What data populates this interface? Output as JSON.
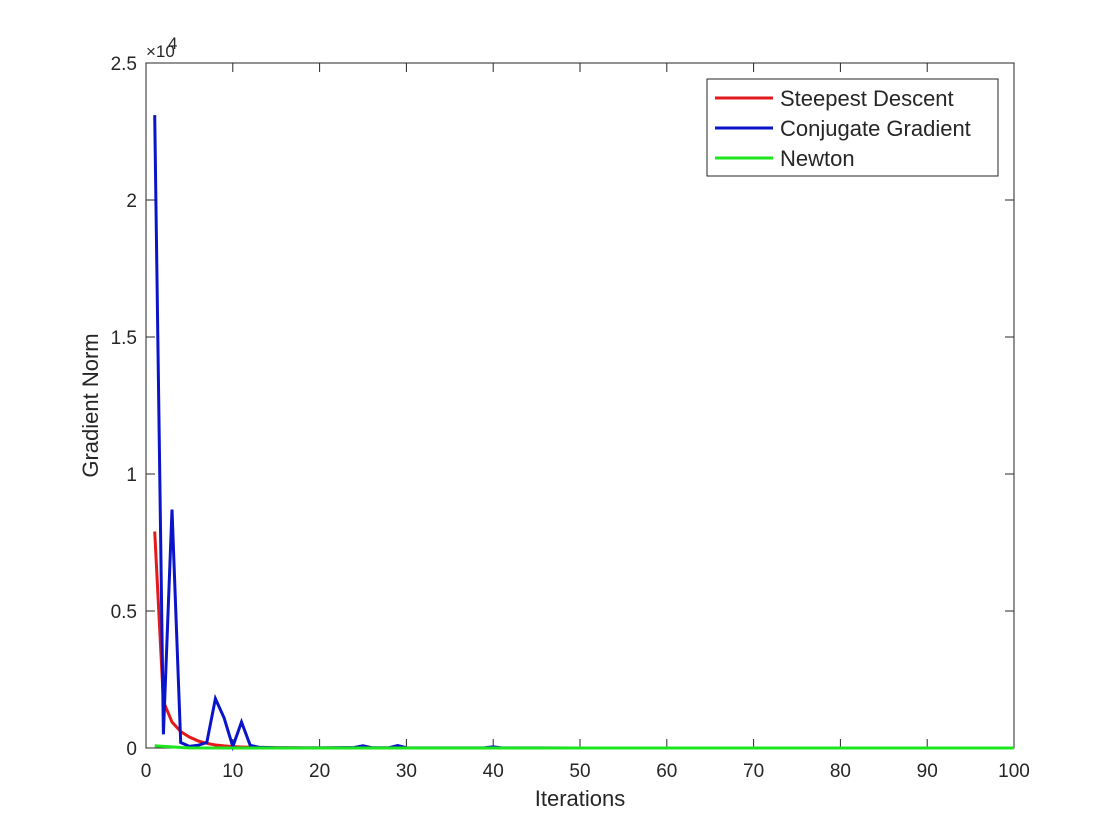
{
  "chart_data": {
    "type": "line",
    "title": "",
    "xlabel": "Iterations",
    "ylabel": "Gradient Norm",
    "xlim": [
      0,
      100
    ],
    "ylim": [
      0,
      25000
    ],
    "y_exponent_label": "×10",
    "y_exponent_power": "4",
    "x_ticks": [
      0,
      10,
      20,
      30,
      40,
      50,
      60,
      70,
      80,
      90,
      100
    ],
    "x_tick_labels": [
      "0",
      "10",
      "20",
      "30",
      "40",
      "50",
      "60",
      "70",
      "80",
      "90",
      "100"
    ],
    "y_ticks": [
      0,
      5000,
      10000,
      15000,
      20000,
      25000
    ],
    "y_tick_labels": [
      "0",
      "0.5",
      "1",
      "1.5",
      "2",
      "2.5"
    ],
    "grid": false,
    "legend_position": "top-right",
    "series": [
      {
        "name": "Steepest Descent",
        "color": "#e31a1c",
        "x": [
          1,
          2,
          3,
          4,
          5,
          6,
          7,
          8,
          9,
          10,
          11,
          12,
          13,
          14,
          15,
          16,
          17,
          18,
          19,
          20,
          25,
          30,
          40,
          50,
          60,
          70,
          80,
          90,
          100
        ],
        "y": [
          7900,
          1700,
          950,
          600,
          400,
          260,
          170,
          110,
          75,
          50,
          35,
          25,
          18,
          13,
          10,
          8,
          6,
          5,
          4,
          3,
          2,
          1,
          1,
          0,
          0,
          0,
          0,
          0,
          0
        ]
      },
      {
        "name": "Conjugate Gradient",
        "color": "#0a14c8",
        "x": [
          1,
          2,
          3,
          4,
          5,
          6,
          7,
          8,
          9,
          10,
          11,
          12,
          13,
          14,
          15,
          20,
          24,
          25,
          26,
          28,
          29,
          30,
          35,
          39,
          40,
          41,
          45,
          50,
          60,
          70,
          80,
          90,
          100
        ],
        "y": [
          23100,
          500,
          8700,
          200,
          60,
          100,
          200,
          1800,
          1100,
          50,
          950,
          100,
          30,
          20,
          10,
          5,
          20,
          80,
          10,
          10,
          90,
          10,
          5,
          10,
          40,
          5,
          2,
          1,
          0,
          0,
          0,
          0,
          0
        ]
      },
      {
        "name": "Newton",
        "color": "#1ee61e",
        "x": [
          1,
          2,
          3,
          4,
          5,
          10,
          20,
          30,
          40,
          50,
          60,
          70,
          80,
          90,
          100
        ],
        "y": [
          80,
          60,
          40,
          20,
          5,
          1,
          0,
          0,
          0,
          0,
          0,
          0,
          0,
          0,
          0
        ]
      }
    ]
  }
}
